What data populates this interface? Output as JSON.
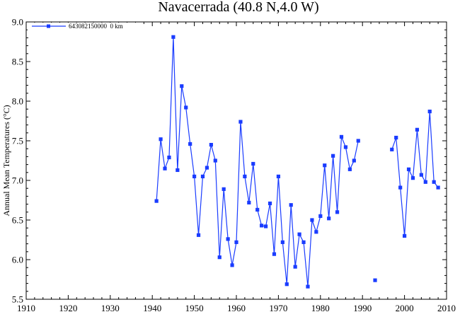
{
  "chart_data": {
    "type": "line",
    "title": "Navacerrada (40.8 N,4.0 W)",
    "xlabel": "",
    "ylabel": "Annual Mean Temperatures (°C)",
    "xlim": [
      1910,
      2010
    ],
    "ylim": [
      5.5,
      9.0
    ],
    "xticks": [
      "1910",
      "1920",
      "1930",
      "1940",
      "1950",
      "1960",
      "1970",
      "1980",
      "1990",
      "2000",
      "2010"
    ],
    "yticks": [
      "5.5",
      "6.0",
      "6.5",
      "7.0",
      "7.5",
      "8.0",
      "8.5",
      "9.0"
    ],
    "legend_position": "top-left",
    "color": "#1a3cff",
    "series": [
      {
        "name": "643082150000  0 km",
        "x": [
          1941,
          1942,
          1943,
          1944,
          1945,
          1946,
          1947,
          1948,
          1949,
          1950,
          1951,
          1952,
          1953,
          1954,
          1955,
          1956,
          1957,
          1958,
          1959,
          1960,
          1961,
          1962,
          1963,
          1964,
          1965,
          1966,
          1967,
          1968,
          1969,
          1970,
          1971,
          1972,
          1973,
          1974,
          1975,
          1976,
          1977,
          1978,
          1979,
          1980,
          1981,
          1982,
          1983,
          1984,
          1985,
          1986,
          1987,
          1988,
          1989,
          1990,
          1991,
          1992,
          1993,
          1994,
          1995,
          1996,
          1997,
          1998,
          1999,
          2000,
          2001,
          2002,
          2003,
          2004,
          2005,
          2006,
          2007,
          2008
        ],
        "y": [
          6.74,
          7.52,
          7.15,
          7.29,
          8.81,
          7.13,
          8.19,
          7.92,
          7.46,
          7.05,
          6.31,
          7.05,
          7.16,
          7.45,
          7.25,
          6.03,
          6.89,
          6.26,
          5.93,
          6.22,
          7.74,
          7.05,
          6.72,
          7.21,
          6.63,
          6.43,
          6.42,
          6.71,
          6.07,
          7.05,
          6.22,
          5.69,
          6.69,
          5.91,
          6.32,
          6.22,
          5.66,
          6.5,
          6.35,
          6.55,
          7.19,
          6.52,
          7.31,
          6.6,
          7.55,
          7.42,
          7.14,
          7.25,
          7.5,
          null,
          null,
          null,
          5.74,
          null,
          null,
          null,
          7.39,
          7.54,
          6.91,
          6.3,
          7.14,
          7.03,
          7.64,
          7.07,
          6.98,
          7.87,
          6.98,
          6.91
        ]
      }
    ]
  }
}
